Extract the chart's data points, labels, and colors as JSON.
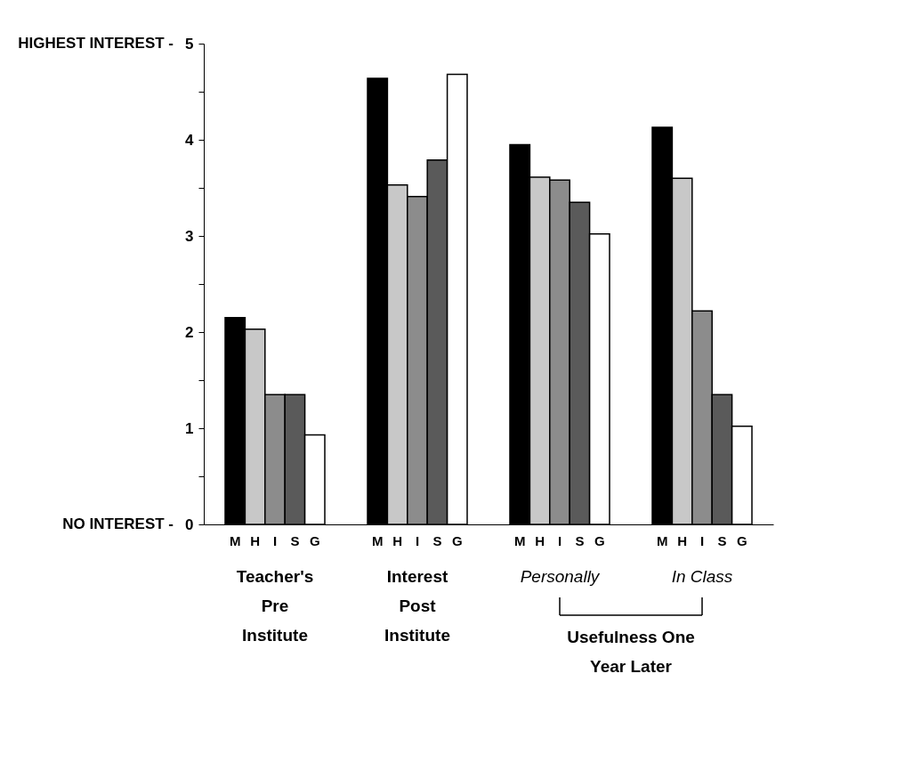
{
  "chart_data": {
    "type": "bar",
    "categories": [
      "Teacher's\nPre\nInstitute",
      "Interest\nPost\nInstitute",
      "Personally",
      "In Class"
    ],
    "series": [
      {
        "name": "M",
        "color": "#000000",
        "values": [
          2.15,
          4.64,
          3.95,
          4.13
        ]
      },
      {
        "name": "H",
        "color": "#c8c8c8",
        "values": [
          2.03,
          3.53,
          3.61,
          3.6
        ]
      },
      {
        "name": "I",
        "color": "#8c8c8c",
        "values": [
          1.35,
          3.41,
          3.58,
          2.22
        ]
      },
      {
        "name": "S",
        "color": "#5a5a5a",
        "values": [
          1.35,
          3.79,
          3.35,
          1.35
        ]
      },
      {
        "name": "G",
        "color": "#ffffff",
        "values": [
          0.93,
          4.68,
          3.02,
          1.02
        ]
      }
    ],
    "ylim": [
      0,
      5
    ],
    "yticks": [
      0,
      {
        "value": 0.5,
        "label": null
      },
      1,
      {
        "value": 1.5,
        "label": null
      },
      2,
      {
        "value": 2.5,
        "label": null
      },
      3,
      {
        "value": 3.5,
        "label": null
      },
      4,
      {
        "value": 4.5,
        "label": null
      },
      5
    ],
    "grid": false,
    "annotations": [
      "Usefulness One\nYear Later",
      "HIGHEST INTEREST -",
      "NO INTEREST -"
    ]
  }
}
